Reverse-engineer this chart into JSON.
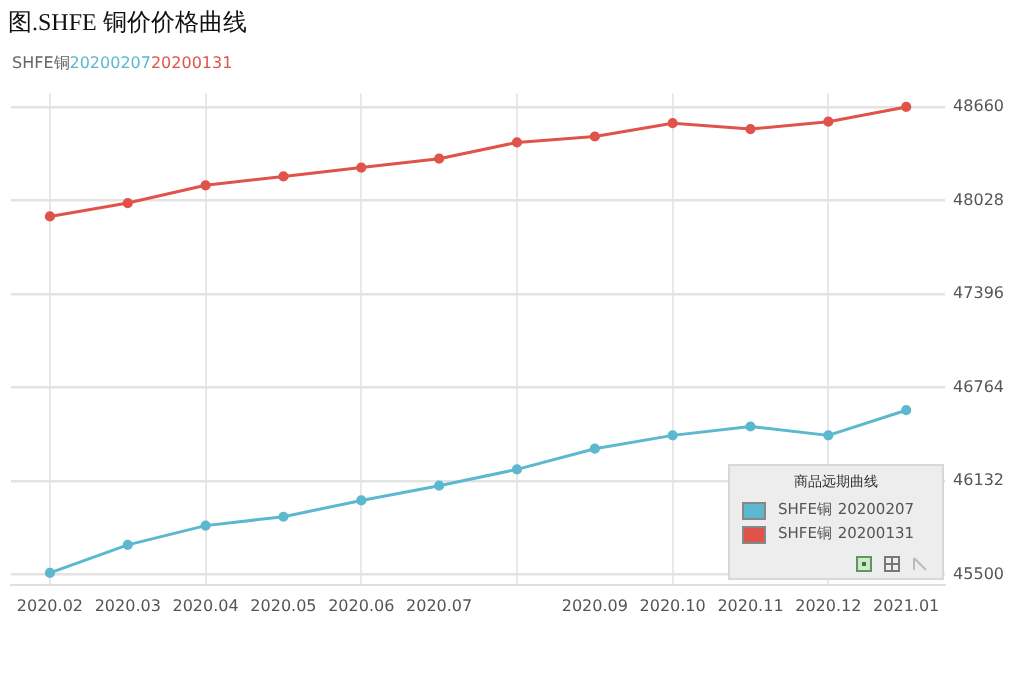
{
  "chart_data": {
    "type": "line",
    "title": "图.SHFE 铜价价格曲线",
    "subtitle": "SHFE铜",
    "annotations": [
      "20200207",
      "20200131"
    ],
    "categories": [
      "2020.02",
      "2020.03",
      "2020.04",
      "2020.05",
      "2020.06",
      "2020.07",
      null,
      "2020.09",
      "2020.10",
      "2020.11",
      "2020.12",
      "2021.01"
    ],
    "series": [
      {
        "name": "SHFE铜 20200207",
        "color": "#5bb8cf",
        "values": [
          45510,
          45700,
          45830,
          45890,
          46000,
          46100,
          46210,
          46350,
          46440,
          46500,
          46440,
          46610
        ]
      },
      {
        "name": "SHFE铜 20200131",
        "color": "#e0534a",
        "values": [
          47920,
          48010,
          48130,
          48190,
          48250,
          48310,
          48420,
          48460,
          48550,
          48510,
          48560,
          48660
        ]
      }
    ],
    "legend_title": "商品远期曲线",
    "legend": "bottom right",
    "ylim": [
      45430,
      48750
    ],
    "yticks": [
      45500,
      46132,
      46764,
      47396,
      48028,
      48660
    ],
    "grid": true,
    "marker": "circle",
    "line_style": "solid"
  }
}
